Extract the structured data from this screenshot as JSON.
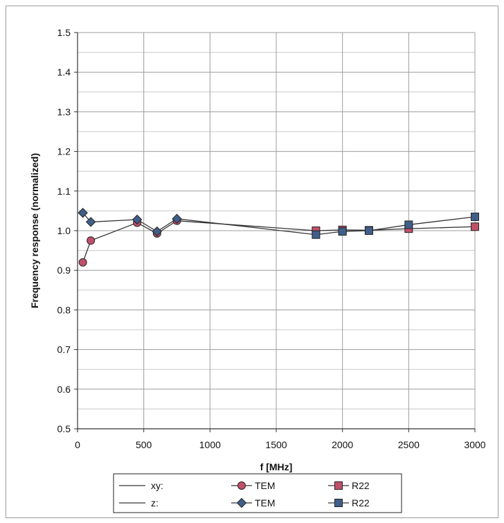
{
  "chart_data": {
    "type": "line",
    "xlabel": "f [MHz]",
    "ylabel": "Frequency response (normalized)",
    "xlim": [
      0,
      3000
    ],
    "ylim": [
      0.5,
      1.5
    ],
    "xticks": [
      0,
      500,
      1000,
      1500,
      2000,
      2500,
      3000
    ],
    "yticks": [
      0.5,
      0.6,
      0.7,
      0.8,
      0.9,
      1.0,
      1.1,
      1.2,
      1.3,
      1.4,
      1.5
    ],
    "ytick_labels": [
      "0.5",
      "0.6",
      "0.7",
      "0.8",
      "0.9",
      "1.0",
      "1.1",
      "1.2",
      "1.3",
      "1.4",
      "1.5"
    ],
    "grid": true,
    "legend_position": "bottom",
    "series": [
      {
        "group": "xy:",
        "name": "TEM",
        "marker": "circle",
        "color": "#c0506a",
        "x": [
          40,
          100,
          450,
          600,
          750
        ],
        "y": [
          0.92,
          0.975,
          1.02,
          0.993,
          1.025
        ]
      },
      {
        "group": "xy:",
        "name": "R22",
        "marker": "square",
        "color": "#c0506a",
        "x": [
          1800,
          2000,
          2200,
          2500,
          3000
        ],
        "y": [
          1.0,
          1.002,
          1.001,
          1.005,
          1.01
        ]
      },
      {
        "group": "z:",
        "name": "TEM",
        "marker": "diamond",
        "color": "#3f5f8a",
        "x": [
          40,
          100,
          450,
          600,
          750
        ],
        "y": [
          1.045,
          1.022,
          1.028,
          0.998,
          1.03
        ]
      },
      {
        "group": "z:",
        "name": "R22",
        "marker": "square",
        "color": "#3f5f8a",
        "x": [
          1800,
          2000,
          2200,
          2500,
          3000
        ],
        "y": [
          0.99,
          0.998,
          1.0,
          1.015,
          1.035
        ]
      }
    ]
  }
}
